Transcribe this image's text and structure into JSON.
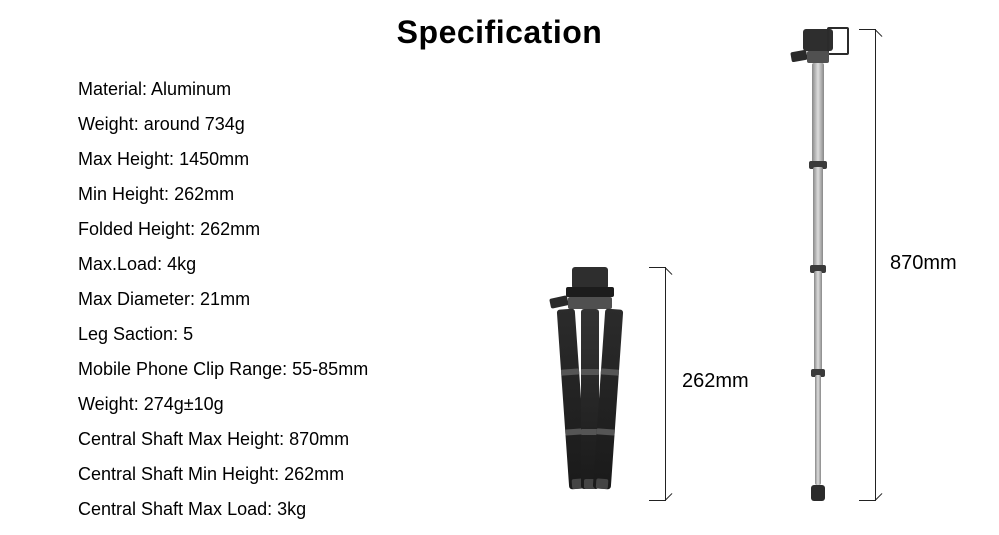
{
  "title": "Specification",
  "specs": [
    {
      "label": "Material",
      "value": "Aluminum"
    },
    {
      "label": "Weight",
      "value": "around 734g"
    },
    {
      "label": "Max Height",
      "value": "1450mm"
    },
    {
      "label": "Min Height",
      "value": "262mm"
    },
    {
      "label": "Folded Height",
      "value": "262mm"
    },
    {
      "label": "Max.Load",
      "value": "4kg"
    },
    {
      "label": "Max Diameter",
      "value": "21mm"
    },
    {
      "label": "Leg Saction",
      "value": "5"
    },
    {
      "label": "Mobile Phone Clip Range",
      "value": "55-85mm"
    },
    {
      "label": "Weight",
      "value": "274g±10g"
    },
    {
      "label": "Central Shaft Max Height",
      "value": "870mm"
    },
    {
      "label": "Central Shaft Min Height",
      "value": "262mm"
    },
    {
      "label": "Central Shaft Max Load",
      "value": "3kg"
    }
  ],
  "diagram": {
    "folded_dim": "262mm",
    "extended_dim": "870mm"
  },
  "style": {
    "title_fontsize": 32,
    "spec_fontsize": 18,
    "dim_label_fontsize": 20,
    "text_color": "#000000",
    "background_color": "#ffffff",
    "bracket_color": "#222222",
    "tripod_dark": "#2b2b2b",
    "tripod_mid": "#505050",
    "shaft_metal_gradient": [
      "#888888",
      "#dddddd",
      "#888888"
    ]
  }
}
